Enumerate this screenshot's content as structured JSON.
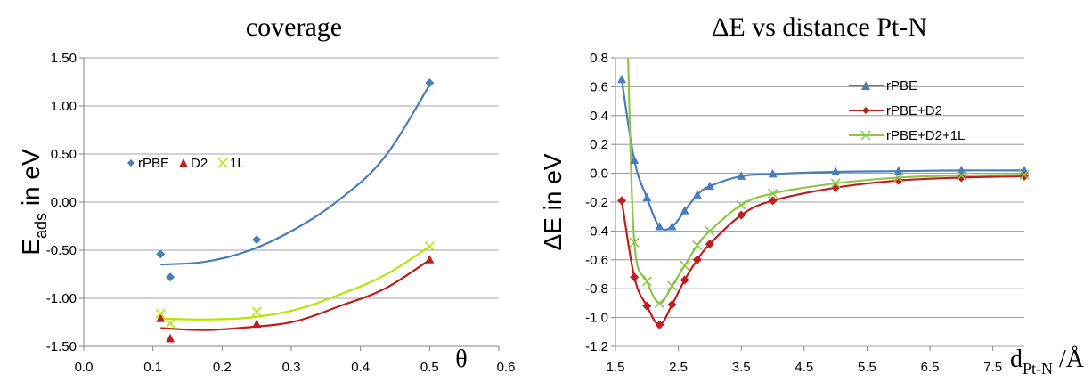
{
  "colors": {
    "blue": "#4a7ebb",
    "red": "#be1e1e",
    "green_left": "#b7e600",
    "green_right": "#8fc54a",
    "grid": "#868686",
    "axis": "#868686"
  },
  "chart_data": [
    {
      "type": "scatter",
      "title": "coverage",
      "xlabel": "θ",
      "ylabel": "E",
      "ylabel_sub": "ads",
      "ylabel_suffix": " in eV",
      "xlim": [
        0.0,
        0.6
      ],
      "ylim": [
        -1.5,
        1.5
      ],
      "x_ticks": [
        "0.0",
        "0.1",
        "0.2",
        "0.3",
        "0.4",
        "0.5",
        "0.6"
      ],
      "y_ticks": [
        "1.50",
        "1.00",
        "0.50",
        "0.00",
        "-0.50",
        "-1.00",
        "-1.50"
      ],
      "grid": "horizontal",
      "legend_position": "middle-left",
      "series": [
        {
          "name": "rPBE",
          "color": "#4a7ebb",
          "marker": "diamond",
          "x": [
            0.111,
            0.125,
            0.25,
            0.5
          ],
          "y": [
            -0.54,
            -0.78,
            -0.39,
            1.24
          ],
          "trend": "polynomial",
          "trend_x_range": [
            0.111,
            0.5
          ],
          "trend_y": [
            -0.65,
            -0.62,
            -0.5,
            -0.28,
            0.03,
            0.47,
            1.22
          ]
        },
        {
          "name": "D2",
          "color": "#be1e1e",
          "marker": "triangle",
          "x": [
            0.111,
            0.125,
            0.25,
            0.5
          ],
          "y": [
            -1.21,
            -1.42,
            -1.27,
            -0.6
          ],
          "trend": "polynomial",
          "trend_x_range": [
            0.111,
            0.5
          ],
          "trend_y": [
            -1.31,
            -1.33,
            -1.3,
            -1.24,
            -1.08,
            -0.9,
            -0.6
          ]
        },
        {
          "name": "1L",
          "color": "#b7e600",
          "marker": "x",
          "x": [
            0.111,
            0.125,
            0.25,
            0.5
          ],
          "y": [
            -1.16,
            -1.26,
            -1.14,
            -0.46
          ],
          "trend": "polynomial",
          "trend_x_range": [
            0.111,
            0.5
          ],
          "trend_y": [
            -1.21,
            -1.22,
            -1.2,
            -1.12,
            -0.96,
            -0.76,
            -0.46
          ]
        }
      ]
    },
    {
      "type": "line",
      "title": "ΔE vs distance Pt-N",
      "xlabel": "d",
      "xlabel_sub": "Pt-N",
      "xlabel_suffix": " /Å",
      "ylabel": "ΔE in eV",
      "xlim": [
        1.5,
        8.0
      ],
      "ylim": [
        -1.2,
        0.8
      ],
      "x_ticks": [
        "1.5",
        "2.5",
        "3.5",
        "4.5",
        "5.5",
        "6.5",
        "7.5"
      ],
      "y_ticks": [
        "0.8",
        "0.6",
        "0.4",
        "0.2",
        "0.0",
        "-0.2",
        "-0.4",
        "-0.6",
        "-0.8",
        "-1.0",
        "-1.2"
      ],
      "grid": "horizontal",
      "legend_position": "top-right",
      "series": [
        {
          "name": "rPBE",
          "color": "#4a7ebb",
          "marker": "triangle",
          "x": [
            1.6,
            1.8,
            2.0,
            2.2,
            2.4,
            2.6,
            2.8,
            3.0,
            3.5,
            4.0,
            5.0,
            6.0,
            7.0,
            8.0
          ],
          "y": [
            0.65,
            0.09,
            -0.17,
            -0.37,
            -0.37,
            -0.26,
            -0.15,
            -0.09,
            -0.02,
            -0.005,
            0.01,
            0.015,
            0.02,
            0.02
          ]
        },
        {
          "name": "rPBE+D2",
          "color": "#be1e1e",
          "marker": "diamond",
          "x": [
            1.6,
            1.8,
            2.0,
            2.2,
            2.4,
            2.6,
            2.8,
            3.0,
            3.5,
            4.0,
            5.0,
            6.0,
            7.0,
            8.0
          ],
          "y": [
            -0.19,
            -0.72,
            -0.92,
            -1.05,
            -0.91,
            -0.74,
            -0.6,
            -0.49,
            -0.29,
            -0.19,
            -0.1,
            -0.05,
            -0.03,
            -0.02
          ]
        },
        {
          "name": "rPBE+D2+1L",
          "color": "#8fc54a",
          "marker": "x",
          "x": [
            1.7,
            1.8,
            2.0,
            2.2,
            2.4,
            2.6,
            2.8,
            3.0,
            3.5,
            4.0,
            5.0,
            6.0,
            7.0,
            8.0
          ],
          "y": [
            0.82,
            -0.48,
            -0.75,
            -0.9,
            -0.78,
            -0.64,
            -0.5,
            -0.4,
            -0.22,
            -0.14,
            -0.07,
            -0.03,
            -0.015,
            -0.01
          ]
        }
      ]
    }
  ]
}
